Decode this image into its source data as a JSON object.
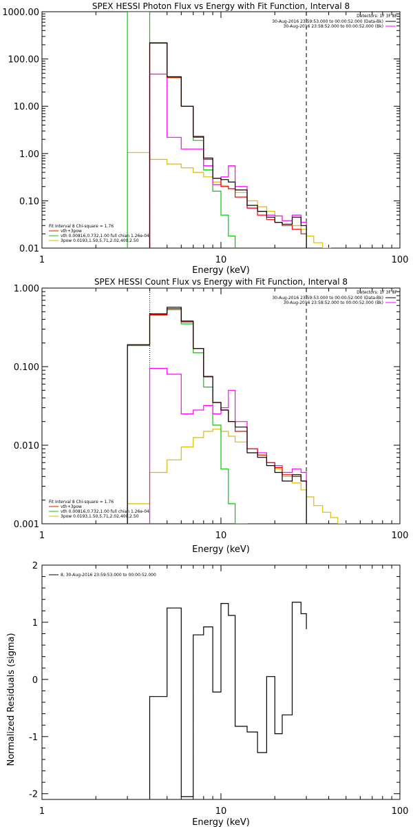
{
  "chart_data": [
    {
      "type": "line",
      "title": "SPEX HESSI Photon Flux vs Energy with Fit Function, Interval 8",
      "xlabel": "Energy (keV)",
      "ylabel": "",
      "xscale": "log",
      "yscale": "log",
      "xlim": [
        1,
        100
      ],
      "ylim": [
        0.01,
        1000
      ],
      "x_tick_labels": [
        "1",
        "10",
        "100"
      ],
      "y_tick_labels": [
        "0.01",
        "0.10",
        "1.00",
        "10.00",
        "100.00",
        "1000.00"
      ],
      "vlines": {
        "dotted": 4.0,
        "dashed": 30.0
      },
      "edges": [
        3.0,
        4.0,
        5.0,
        6.0,
        7.0,
        8.0,
        9.0,
        10.0,
        11.0,
        12.0,
        14.0,
        16.0,
        18.0,
        20.0,
        22.0,
        25.0,
        28.0,
        30.0,
        33.0,
        37.0,
        41.0
      ],
      "series": [
        {
          "name": "Data",
          "color": "#000000",
          "values": [
            null,
            220,
            42,
            10,
            2.3,
            0.8,
            0.3,
            0.28,
            0.25,
            0.17,
            0.08,
            0.06,
            0.045,
            0.035,
            0.032,
            0.045,
            0.03,
            null,
            null,
            null
          ]
        },
        {
          "name": "Bk",
          "color": "#ff00ff",
          "values": [
            null,
            48,
            2.2,
            1.25,
            1.25,
            0.55,
            0.22,
            0.32,
            0.55,
            0.2,
            0.07,
            0.06,
            0.05,
            0.048,
            0.038,
            0.05,
            0.035,
            null,
            null,
            null
          ]
        },
        {
          "name": "vth+3pow",
          "color": "#ff0000",
          "values": [
            null,
            220,
            41,
            10,
            2.2,
            0.75,
            0.3,
            0.2,
            0.18,
            0.12,
            0.07,
            0.05,
            0.04,
            0.035,
            0.03,
            0.025,
            0.02,
            null,
            null,
            null
          ]
        },
        {
          "name": "vth 0.00816,0.732,1.00 full chian 1.26e-04",
          "color": "#00cc00",
          "values": [
            1000,
            215,
            40,
            10,
            1.9,
            0.45,
            0.16,
            0.05,
            0.018,
            null,
            null,
            null,
            null,
            null,
            null,
            null,
            null,
            null,
            null,
            null
          ]
        },
        {
          "name": "3pow 0.0193,1.50,5.71,2.02,400,2.50",
          "color": "#ddbb00",
          "values": [
            1.05,
            0.75,
            0.6,
            0.5,
            0.4,
            0.32,
            0.25,
            0.21,
            0.18,
            0.15,
            0.1,
            0.075,
            0.06,
            0.048,
            0.038,
            0.03,
            0.025,
            0.018,
            0.013,
            0.01
          ]
        }
      ],
      "legend_top": {
        "title": "Detectors: 1F 3F 8F",
        "entries": [
          "30-Aug-2016 23:59:53.000 to 00:00:52.000 (Data-Bk)",
          "30-Aug-2016 23:58:52.000 to 00:00:52.000 (Bk)"
        ]
      },
      "legend_bottom": {
        "header": "Fit Interval 8   Chi-square = 1.76",
        "entries": [
          "vth+3pow",
          "vth 0.00816,0.732,1.00  full chian 1.26e-04",
          "3pow 0.0193,1.50,5.71,2.02,400,2.50"
        ]
      }
    },
    {
      "type": "line",
      "title": "SPEX HESSI Count Flux vs Energy with Fit Function, Interval 8",
      "xlabel": "Energy (keV)",
      "ylabel": "",
      "xscale": "log",
      "yscale": "log",
      "xlim": [
        1,
        100
      ],
      "ylim": [
        0.001,
        1
      ],
      "x_tick_labels": [
        "1",
        "10",
        "100"
      ],
      "y_tick_labels": [
        "0.001",
        "0.010",
        "0.100",
        "1.000"
      ],
      "vlines": {
        "dotted": 4.0,
        "dashed": 30.0
      },
      "edges": [
        3.0,
        4.0,
        5.0,
        6.0,
        7.0,
        8.0,
        9.0,
        10.0,
        11.0,
        12.0,
        14.0,
        16.0,
        18.0,
        20.0,
        22.0,
        25.0,
        28.0,
        30.0,
        33.0,
        37.0,
        41.0,
        45.0,
        50.0
      ],
      "series": [
        {
          "name": "Data",
          "color": "#000000",
          "values": [
            0.19,
            0.47,
            0.57,
            0.38,
            0.17,
            0.075,
            0.035,
            0.028,
            0.02,
            0.017,
            0.008,
            0.007,
            0.0055,
            0.0045,
            0.0035,
            0.0042,
            0.0035,
            null,
            null,
            null,
            null,
            null
          ]
        },
        {
          "name": "Bk",
          "color": "#ff00ff",
          "values": [
            null,
            0.095,
            0.08,
            0.025,
            0.028,
            0.032,
            0.025,
            0.03,
            0.05,
            0.02,
            0.009,
            0.008,
            0.006,
            0.0055,
            0.0045,
            0.005,
            0.0045,
            null,
            null,
            null,
            null,
            null
          ]
        },
        {
          "name": "vth+3pow",
          "color": "#ff0000",
          "values": [
            0.19,
            0.46,
            0.55,
            0.37,
            0.17,
            0.074,
            0.035,
            0.028,
            0.02,
            0.015,
            0.009,
            0.0075,
            0.006,
            0.0052,
            0.0042,
            0.004,
            0.0035,
            null,
            null,
            null,
            null,
            null
          ]
        },
        {
          "name": "vth 0.00816,0.732,1.00 full chian 1.26e-04",
          "color": "#00cc00",
          "values": [
            0.185,
            0.45,
            0.53,
            0.35,
            0.15,
            0.055,
            0.018,
            0.005,
            0.0018,
            0.001,
            null,
            null,
            null,
            null,
            null,
            null,
            null,
            null,
            null,
            null,
            null,
            null
          ]
        },
        {
          "name": "3pow 0.0193,1.50,5.71,2.02,400,2.50",
          "color": "#ddbb00",
          "values": [
            0.0018,
            0.0045,
            0.0065,
            0.0095,
            0.0125,
            0.015,
            0.016,
            0.015,
            0.013,
            0.011,
            0.009,
            0.0075,
            0.006,
            0.005,
            0.004,
            0.0033,
            0.0027,
            0.0022,
            0.0017,
            0.0014,
            0.0012,
            0.001
          ]
        }
      ],
      "legend_top": {
        "title": "Detectors: 1F 3F 8F",
        "entries": [
          "30-Aug-2016 23:59:53.000 to 00:00:52.000 (Data-Bk)",
          "30-Aug-2016 23:58:52.000 to 00:00:52.000 (Bk)"
        ]
      },
      "legend_bottom": {
        "header": "Fit Interval 8   Chi-square = 1.76",
        "entries": [
          "vth+3pow",
          "vth 0.00816,0.732,1.00  full chian 1.26e-04",
          "3pow 0.0193,1.50,5.71,2.02,400,2.50"
        ]
      }
    },
    {
      "type": "line",
      "title": "",
      "xlabel": "Energy (keV)",
      "ylabel": "Normalized Residuals (sigma)",
      "xscale": "log",
      "yscale": "linear",
      "xlim": [
        1,
        100
      ],
      "ylim": [
        -2.1,
        2
      ],
      "x_tick_labels": [
        "1",
        "10",
        "100"
      ],
      "y_tick_labels": [
        "-2",
        "-1",
        "0",
        "1",
        "2"
      ],
      "edges": [
        4.0,
        5.0,
        6.0,
        7.0,
        8.0,
        9.0,
        10.0,
        11.0,
        12.0,
        14.0,
        16.0,
        18.0,
        20.0,
        22.0,
        25.0,
        28.0,
        30.0
      ],
      "series": [
        {
          "name": "8, 30-Aug-2016 23:59:53.000 to 00:00:52.000",
          "color": "#000000",
          "values": [
            -0.3,
            1.25,
            -2.05,
            0.78,
            0.92,
            -0.22,
            1.33,
            1.12,
            -0.82,
            -0.92,
            -1.28,
            0.05,
            -0.95,
            -0.62,
            1.35,
            1.15,
            0.88
          ]
        }
      ],
      "legend": {
        "entries": [
          "8, 30-Aug-2016 23:59:53.000 to 00:00:52.000"
        ]
      }
    }
  ]
}
